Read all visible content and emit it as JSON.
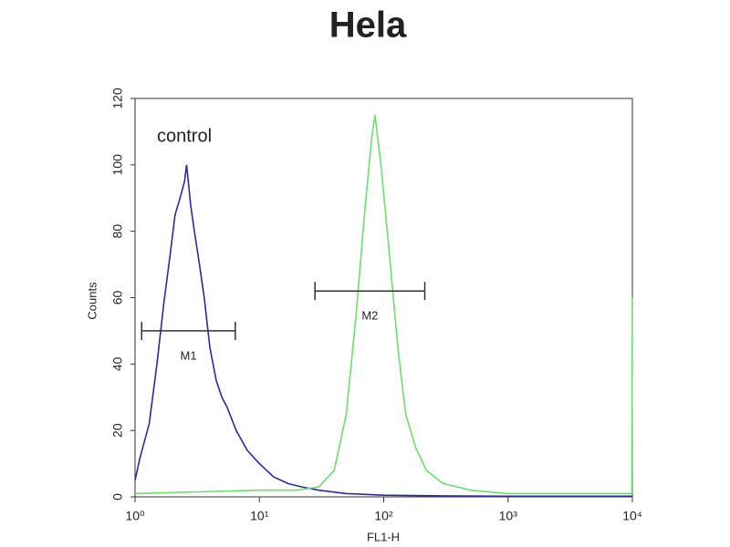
{
  "chart_data": {
    "type": "line",
    "title": "Hela",
    "x_label": "FL1-H",
    "y_label": "Counts",
    "xscale": "log",
    "xlim": [
      1,
      10000
    ],
    "ylim": [
      0,
      120
    ],
    "xticks": [
      {
        "value": 1,
        "label": "10⁰"
      },
      {
        "value": 10,
        "label": "10¹"
      },
      {
        "value": 100,
        "label": "10²"
      },
      {
        "value": 1000,
        "label": "10³"
      },
      {
        "value": 10000,
        "label": "10⁴"
      }
    ],
    "yticks": [
      0,
      20,
      40,
      60,
      80,
      100,
      120
    ],
    "series": [
      {
        "name": "control",
        "color": "#2b2b9c",
        "x": [
          1.0,
          1.1,
          1.3,
          1.5,
          1.7,
          1.9,
          2.1,
          2.3,
          2.5,
          2.6,
          2.8,
          3.0,
          3.3,
          3.6,
          4.0,
          4.5,
          5.0,
          5.5,
          6.5,
          8,
          10,
          13,
          17,
          22,
          30,
          50,
          100,
          300,
          1000,
          10000
        ],
        "values": [
          5,
          12,
          22,
          40,
          58,
          72,
          85,
          90,
          95,
          100,
          88,
          80,
          70,
          60,
          45,
          35,
          30,
          27,
          20,
          14,
          10,
          6,
          4,
          3,
          2,
          1,
          0.5,
          0.3,
          0.2,
          0.2
        ]
      },
      {
        "color": "#6fdc6f",
        "x": [
          1,
          10,
          20,
          30,
          40,
          50,
          60,
          70,
          80,
          85,
          95,
          110,
          130,
          150,
          180,
          220,
          300,
          500,
          1000,
          9900,
          10000
        ],
        "values": [
          1,
          2,
          2,
          3,
          8,
          25,
          55,
          85,
          108,
          115,
          100,
          75,
          45,
          25,
          15,
          8,
          4,
          2,
          1,
          1,
          60
        ]
      }
    ],
    "markers": [
      {
        "label": "M1",
        "range": [
          1.13,
          6.4
        ],
        "y": 50
      },
      {
        "label": "M2",
        "range": [
          28,
          214
        ],
        "y": 62
      }
    ]
  }
}
